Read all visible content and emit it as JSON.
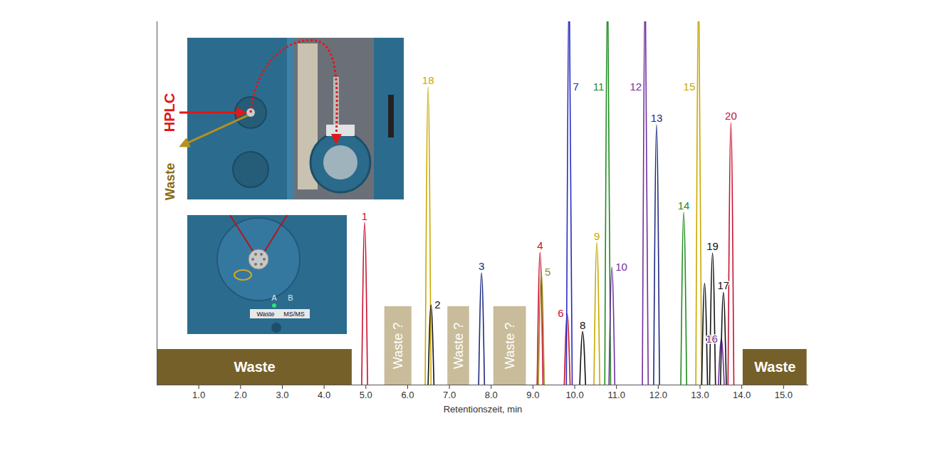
{
  "chart_data": {
    "type": "line",
    "x_label": "Retentionszeit, min",
    "xlim": [
      0,
      15.6
    ],
    "xticks": [
      {
        "value": 1,
        "label": "1.0"
      },
      {
        "value": 2,
        "label": "2.0"
      },
      {
        "value": 3,
        "label": "3.0"
      },
      {
        "value": 4,
        "label": "4.0"
      },
      {
        "value": 5,
        "label": "5.0"
      },
      {
        "value": 6,
        "label": "6.0"
      },
      {
        "value": 7,
        "label": "7.0"
      },
      {
        "value": 8,
        "label": "8.0"
      },
      {
        "value": 9,
        "label": "9.0"
      },
      {
        "value": 10,
        "label": "10.0"
      },
      {
        "value": 11,
        "label": "11.0"
      },
      {
        "value": 12,
        "label": "12.0"
      },
      {
        "value": 13,
        "label": "13.0"
      },
      {
        "value": 14,
        "label": "14.0"
      },
      {
        "value": 15,
        "label": "15.0"
      }
    ],
    "ylim": [
      0,
      100
    ],
    "tick_labels": "x",
    "peaks": [
      {
        "label": "1",
        "x": 4.97,
        "value": 44.7,
        "color": "#c8102e"
      },
      {
        "label": "18",
        "x": 6.49,
        "value": 82.0,
        "color": "#c9a800"
      },
      {
        "label": "2",
        "x": 6.56,
        "value": 22.0,
        "color": "#111111"
      },
      {
        "label": "3",
        "x": 7.77,
        "value": 30.8,
        "color": "#1c2a80"
      },
      {
        "label": "4",
        "x": 9.17,
        "value": 36.5,
        "color": "#c8102e"
      },
      {
        "label": "5",
        "x": 9.2,
        "value": 31.0,
        "color": "#9a8a20"
      },
      {
        "label": "6",
        "x": 9.82,
        "value": 19.6,
        "color": "#c8102e"
      },
      {
        "label": "7",
        "x": 9.87,
        "value": 110,
        "color": "#2a2ac0"
      },
      {
        "label": "8",
        "x": 10.19,
        "value": 14.7,
        "color": "#111111"
      },
      {
        "label": "9",
        "x": 10.53,
        "value": 39.2,
        "color": "#c9a800"
      },
      {
        "label": "11",
        "x": 10.79,
        "value": 110,
        "color": "#1e8c1e"
      },
      {
        "label": "10",
        "x": 10.89,
        "value": 32.4,
        "color": "#7030a0"
      },
      {
        "label": "12",
        "x": 11.69,
        "value": 110,
        "color": "#7030a0"
      },
      {
        "label": "13",
        "x": 11.96,
        "value": 71.6,
        "color": "#1c2a80"
      },
      {
        "label": "14",
        "x": 12.61,
        "value": 47.5,
        "color": "#1e8c1e"
      },
      {
        "label": "15",
        "x": 12.97,
        "value": 110,
        "color": "#c9a800"
      },
      {
        "label": null,
        "x": 13.11,
        "value": 28.0,
        "color": "#111111"
      },
      {
        "label": "19",
        "x": 13.3,
        "value": 36.3,
        "color": "#111111"
      },
      {
        "label": "16",
        "x": 13.51,
        "value": 12.7,
        "color": "#7030a0"
      },
      {
        "label": "17",
        "x": 13.56,
        "value": 25.5,
        "color": "#111111"
      },
      {
        "label": "20",
        "x": 13.74,
        "value": 72.2,
        "color": "#c8102e"
      }
    ],
    "annotations": [
      {
        "text": "Waste",
        "x1": 0,
        "x2": 4.67,
        "y1": 0,
        "y2": 9.8,
        "color": "#76602a"
      },
      {
        "text": "Waste ?",
        "x1": 5.45,
        "x2": 6.1,
        "y1": 0,
        "y2": 21.6,
        "color": "#c8bc9a"
      },
      {
        "text": "Waste ?",
        "x1": 6.96,
        "x2": 7.48,
        "y1": 0,
        "y2": 21.6,
        "color": "#c8bc9a"
      },
      {
        "text": "Waste ?",
        "x1": 8.06,
        "x2": 8.84,
        "y1": 0,
        "y2": 21.6,
        "color": "#c8bc9a"
      },
      {
        "text": "Waste",
        "x1": 14.03,
        "x2": 15.56,
        "y1": 0,
        "y2": 9.8,
        "color": "#76602a"
      }
    ],
    "insets": {
      "hplc_label": "HPLC",
      "waste_label": "Waste",
      "port_a": "A",
      "port_b": "B",
      "valve_position_a": "Waste",
      "valve_position_b": "MS/MS"
    }
  }
}
